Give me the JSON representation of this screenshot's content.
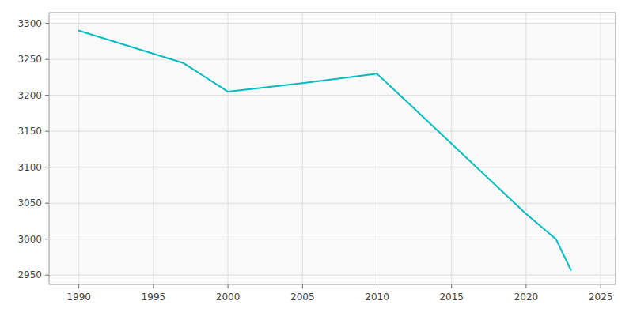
{
  "chart_data": {
    "type": "line",
    "x": [
      1990,
      1997,
      2000,
      2005,
      2010,
      2020,
      2022,
      2023
    ],
    "values": [
      3290,
      3245,
      3205,
      3217,
      3230,
      3035,
      3000,
      2957
    ],
    "color": "#00BBBF",
    "xlim": [
      1988,
      2026
    ],
    "ylim": [
      2937,
      3315
    ],
    "xticks": [
      1990,
      1995,
      2000,
      2005,
      2010,
      2015,
      2020,
      2025
    ],
    "yticks": [
      2950,
      3000,
      3050,
      3100,
      3150,
      3200,
      3250,
      3300
    ],
    "grid": true
  }
}
